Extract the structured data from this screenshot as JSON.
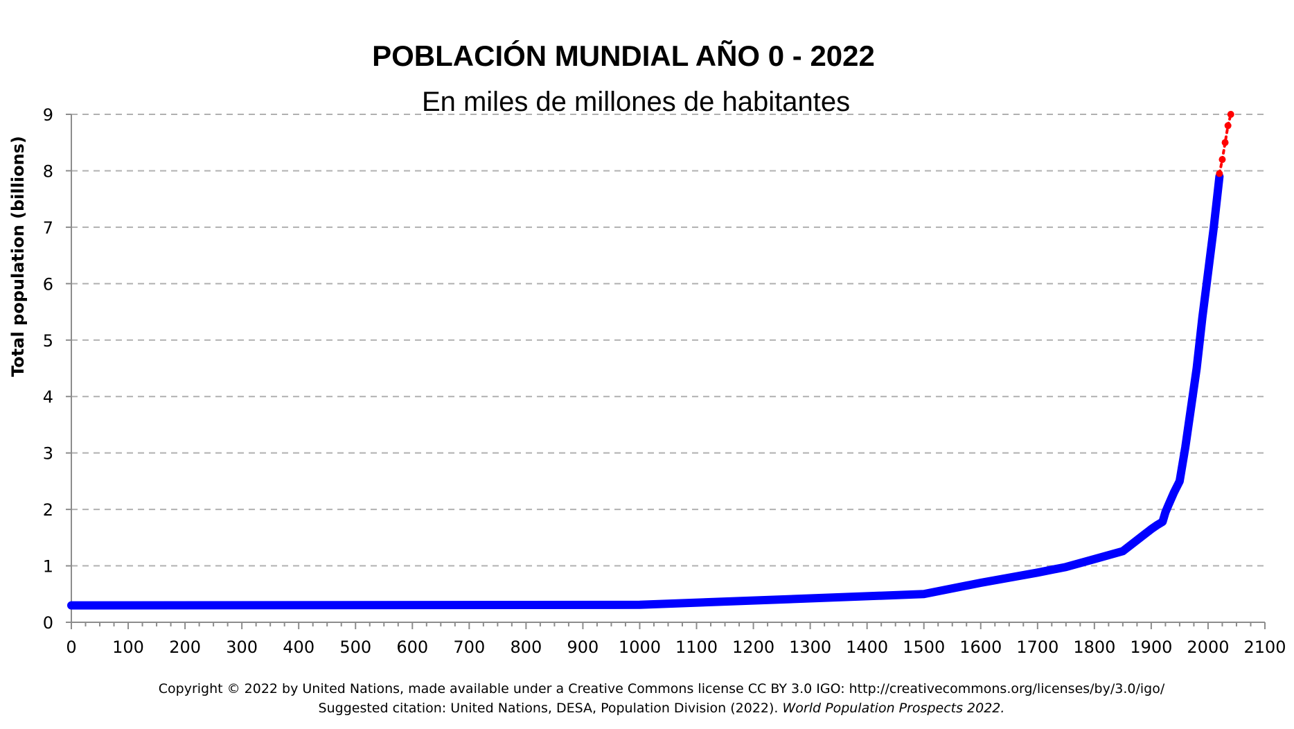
{
  "chart_data": {
    "type": "line",
    "title": "POBLACIÓN MUNDIAL AÑO 0 - 2022",
    "subtitle": "En miles de millones de habitantes",
    "xlabel": "",
    "ylabel": "Total population (billions)",
    "xlim": [
      0,
      2100
    ],
    "ylim": [
      0,
      9
    ],
    "x_ticks": [
      "0",
      "100",
      "200",
      "300",
      "400",
      "500",
      "600",
      "700",
      "800",
      "900",
      "1000",
      "1100",
      "1200",
      "1300",
      "1400",
      "1500",
      "1600",
      "1700",
      "1800",
      "1900",
      "2000",
      "2100"
    ],
    "y_ticks": [
      "0",
      "1",
      "2",
      "3",
      "4",
      "5",
      "6",
      "7",
      "8",
      "9"
    ],
    "grid": "horizontal dashed",
    "series": [
      {
        "color": "#0000ff",
        "style": "solid",
        "x": [
          0,
          1000,
          1500,
          1600,
          1700,
          1750,
          1800,
          1850,
          1900,
          1910,
          1920,
          1925,
          1930,
          1940,
          1950,
          1960,
          1970,
          1980,
          1990,
          2000,
          2010,
          2020
        ],
        "y": [
          0.3,
          0.31,
          0.5,
          0.7,
          0.88,
          0.98,
          1.12,
          1.26,
          1.65,
          1.72,
          1.78,
          1.95,
          2.07,
          2.3,
          2.5,
          3.1,
          3.8,
          4.5,
          5.4,
          6.2,
          7.0,
          7.9
        ]
      },
      {
        "color": "#ff0000",
        "style": "dotted",
        "x": [
          2020,
          2025,
          2030,
          2035,
          2040
        ],
        "y": [
          7.95,
          8.2,
          8.5,
          8.8,
          9.0
        ]
      }
    ]
  },
  "credits": {
    "line1": "Copyright © 2022 by United Nations, made available under a Creative Commons license CC BY 3.0 IGO: http://creativecommons.org/licenses/by/3.0/igo/",
    "line2_prefix": "Suggested citation: United Nations, DESA, Population Division (2022). ",
    "line2_italic": "World Population Prospects 2022."
  }
}
